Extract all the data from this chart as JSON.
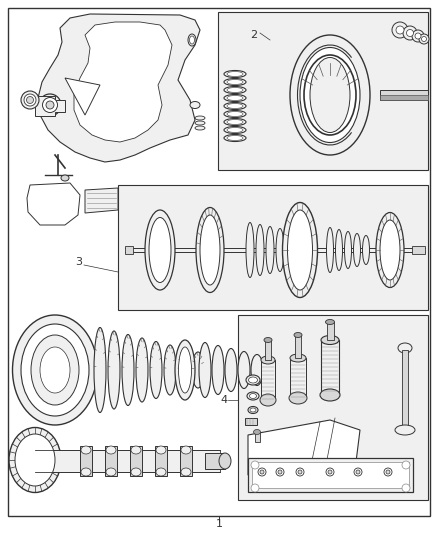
{
  "bg_color": "#ffffff",
  "line_color": "#333333",
  "fill_light": "#f0f0f0",
  "fill_med": "#d8d8d8",
  "fill_dark": "#aaaaaa",
  "box_fill": "#f8f8f8",
  "fig_width": 4.38,
  "fig_height": 5.33,
  "dpi": 100,
  "labels": {
    "1": "1",
    "2": "2",
    "3": "3",
    "4": "4"
  }
}
